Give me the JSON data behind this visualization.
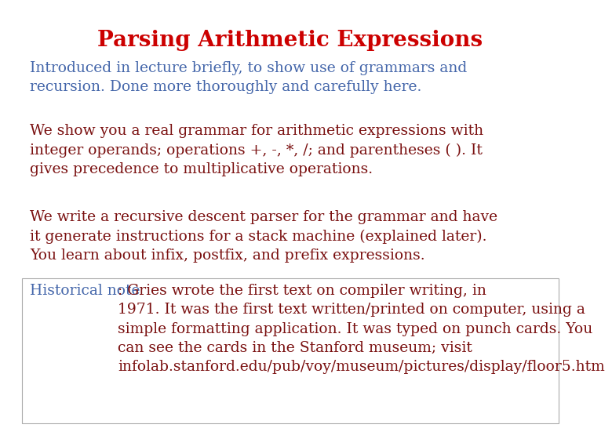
{
  "title": "Parsing Arithmetic Expressions",
  "title_color": "#cc0000",
  "title_fontsize": 20,
  "background_color": "#ffffff",
  "para1_color": "#4466aa",
  "para1_text": "Introduced in lecture briefly, to show use of grammars and\nrecursion. Done more thoroughly and carefully here.",
  "para2_color": "#7a1010",
  "para2_text": "We show you a real grammar for arithmetic expressions with\ninteger operands; operations +, -, *, /; and parentheses ( ). It\ngives precedence to multiplicative operations.",
  "para3_color": "#7a1010",
  "para3_text": "We write a recursive descent parser for the grammar and have\nit generate instructions for a stack machine (explained later).\nYou learn about infix, postfix, and prefix expressions.",
  "para4_prefix": "Historical note",
  "para4_prefix_color": "#4466aa",
  "para4_suffix": ": Gries wrote the first text on compiler writing, in\n1971. It was the first text written/printed on computer, using a\nsimple formatting application. It was typed on punch cards. You\ncan see the cards in the Stanford museum; visit\ninfolab.stanford.edu/pub/voy/museum/pictures/display/floor5.htm",
  "para4_suffix_color": "#7a1010",
  "box_edge_color": "#aaaaaa",
  "fontsize": 13.5,
  "font_family": "DejaVu Serif"
}
